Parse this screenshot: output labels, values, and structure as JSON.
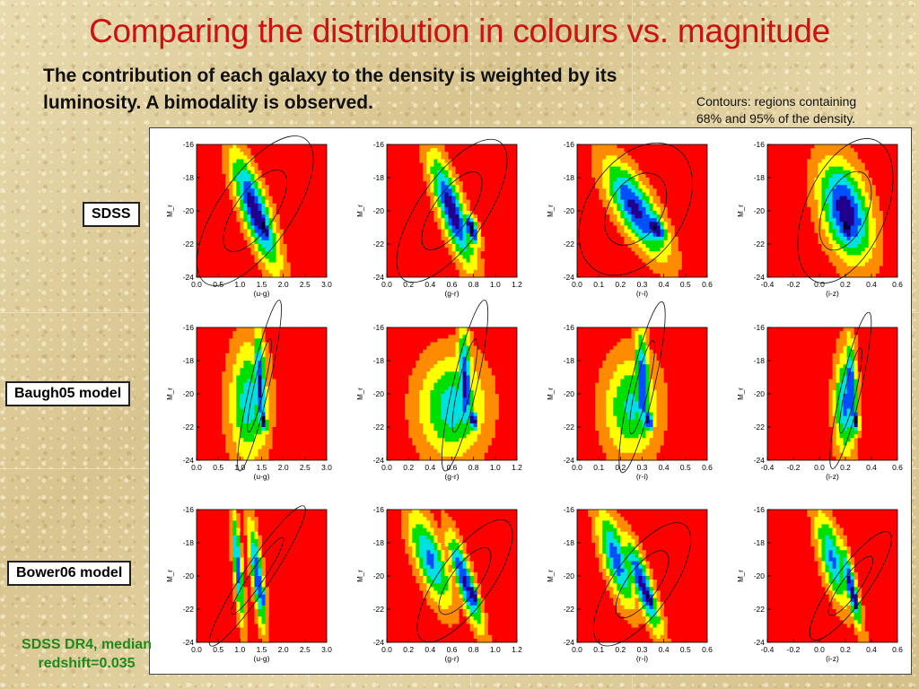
{
  "title": "Comparing the distribution in colours vs. magnitude",
  "subtitle_line1": "The contribution of each galaxy to the density is weighted by its",
  "subtitle_line2": "luminosity.  A bimodality is observed.",
  "contours_note_line1": "Contours: regions containing",
  "contours_note_line2": "68% and 95% of the density.",
  "row_labels": [
    "SDSS",
    "Baugh05 model",
    "Bower06 model"
  ],
  "footnote_line1": "SDSS DR4, median",
  "footnote_line2": "redshift=0.035",
  "colors": {
    "title": "#cc1111",
    "footnote": "#1e8a1e",
    "panel_background": "#ff0000",
    "colormap": [
      "#ff0000",
      "#ff8c00",
      "#ffff00",
      "#00e000",
      "#00e0e0",
      "#0050ff",
      "#20008c",
      "#000030"
    ]
  },
  "chart_data": {
    "type": "heatmap",
    "layout": "3 rows x 4 columns of density maps",
    "ylabel": "M_r",
    "ylim": [
      -24,
      -16
    ],
    "yticks": [
      "-16",
      "-18",
      "-20",
      "-22",
      "-24"
    ],
    "columns": [
      {
        "xlabel": "(u-g)",
        "xlim": [
          0.0,
          3.0
        ],
        "xticks": [
          "0.0",
          "0.5",
          "1.0",
          "1.5",
          "2.0",
          "2.5",
          "3.0"
        ]
      },
      {
        "xlabel": "(g-r)",
        "xlim": [
          0.0,
          1.2
        ],
        "xticks": [
          "0.0",
          "0.2",
          "0.4",
          "0.6",
          "0.8",
          "1.0",
          "1.2"
        ]
      },
      {
        "xlabel": "(r-i)",
        "xlim": [
          0.0,
          0.6
        ],
        "xticks": [
          "0.0",
          "0.1",
          "0.2",
          "0.3",
          "0.4",
          "0.5",
          "0.6"
        ]
      },
      {
        "xlabel": "(i-z)",
        "xlim": [
          -0.4,
          0.6
        ],
        "xticks": [
          "-0.4",
          "-0.2",
          "0.0",
          "0.2",
          "0.4",
          "0.6"
        ]
      }
    ],
    "rows": [
      {
        "name": "SDSS",
        "panels": [
          [
            {
              "x": 1.35,
              "y": -20.0,
              "sx": 0.38,
              "sy": 2.4,
              "rho": -0.8,
              "a": 0.9
            },
            {
              "x": 1.55,
              "y": -21.0,
              "sx": 0.14,
              "sy": 0.8,
              "rho": -0.6,
              "a": 1.0
            }
          ],
          [
            {
              "x": 0.6,
              "y": -20.0,
              "sx": 0.14,
              "sy": 2.3,
              "rho": -0.8,
              "a": 0.9
            },
            {
              "x": 0.78,
              "y": -21.1,
              "sx": 0.05,
              "sy": 0.7,
              "rho": -0.6,
              "a": 1.0
            }
          ],
          [
            {
              "x": 0.27,
              "y": -19.9,
              "sx": 0.1,
              "sy": 2.0,
              "rho": -0.75,
              "a": 0.85
            },
            {
              "x": 0.36,
              "y": -21.0,
              "sx": 0.04,
              "sy": 0.7,
              "rho": -0.5,
              "a": 1.0
            }
          ],
          [
            {
              "x": 0.2,
              "y": -20.0,
              "sx": 0.14,
              "sy": 2.1,
              "rho": -0.4,
              "a": 0.9
            },
            {
              "x": 0.21,
              "y": -21.0,
              "sx": 0.06,
              "sy": 0.8,
              "rho": -0.3,
              "a": 1.0
            }
          ]
        ]
      },
      {
        "name": "Baugh05 model",
        "panels": [
          [
            {
              "x": 1.2,
              "y": -20.5,
              "sx": 0.32,
              "sy": 2.6,
              "rho": 0.0,
              "a": 0.6
            },
            {
              "x": 1.45,
              "y": -19.5,
              "sx": 0.1,
              "sy": 2.4,
              "rho": -0.2,
              "a": 0.85
            },
            {
              "x": 1.55,
              "y": -21.6,
              "sx": 0.06,
              "sy": 0.55,
              "rho": -0.3,
              "a": 1.0
            }
          ],
          [
            {
              "x": 0.6,
              "y": -20.8,
              "sx": 0.22,
              "sy": 2.2,
              "rho": 0.0,
              "a": 0.6
            },
            {
              "x": 0.72,
              "y": -19.5,
              "sx": 0.05,
              "sy": 2.4,
              "rho": -0.2,
              "a": 0.85
            },
            {
              "x": 0.8,
              "y": -21.6,
              "sx": 0.03,
              "sy": 0.5,
              "rho": -0.3,
              "a": 1.0
            }
          ],
          [
            {
              "x": 0.25,
              "y": -20.8,
              "sx": 0.09,
              "sy": 2.2,
              "rho": 0.0,
              "a": 0.55
            },
            {
              "x": 0.3,
              "y": -19.6,
              "sx": 0.025,
              "sy": 2.4,
              "rho": -0.2,
              "a": 0.85
            },
            {
              "x": 0.33,
              "y": -21.6,
              "sx": 0.015,
              "sy": 0.5,
              "rho": -0.3,
              "a": 1.0
            }
          ],
          [
            {
              "x": 0.2,
              "y": -20.6,
              "sx": 0.06,
              "sy": 2.2,
              "rho": 0.0,
              "a": 0.7
            },
            {
              "x": 0.24,
              "y": -19.8,
              "sx": 0.035,
              "sy": 2.2,
              "rho": -0.2,
              "a": 0.85
            },
            {
              "x": 0.28,
              "y": -21.6,
              "sx": 0.02,
              "sy": 0.55,
              "rho": -0.3,
              "a": 1.0
            }
          ]
        ]
      },
      {
        "name": "Bower06 model",
        "panels": [
          [
            {
              "x": 0.95,
              "y": -19.5,
              "sx": 0.1,
              "sy": 2.4,
              "rho": -0.7,
              "a": 0.75
            },
            {
              "x": 1.4,
              "y": -20.0,
              "sx": 0.14,
              "sy": 2.3,
              "rho": -0.75,
              "a": 0.8
            },
            {
              "x": 1.5,
              "y": -21.2,
              "sx": 0.06,
              "sy": 0.6,
              "rho": -0.5,
              "a": 1.0
            }
          ],
          [
            {
              "x": 0.4,
              "y": -19.0,
              "sx": 0.14,
              "sy": 2.0,
              "rho": -0.7,
              "a": 0.7
            },
            {
              "x": 0.72,
              "y": -20.3,
              "sx": 0.11,
              "sy": 2.0,
              "rho": -0.85,
              "a": 0.85
            },
            {
              "x": 0.8,
              "y": -21.2,
              "sx": 0.04,
              "sy": 0.7,
              "rho": -0.6,
              "a": 1.0
            }
          ],
          [
            {
              "x": 0.18,
              "y": -19.0,
              "sx": 0.06,
              "sy": 2.0,
              "rho": -0.7,
              "a": 0.75
            },
            {
              "x": 0.3,
              "y": -20.5,
              "sx": 0.06,
              "sy": 2.0,
              "rho": -0.85,
              "a": 0.85
            },
            {
              "x": 0.33,
              "y": -21.3,
              "sx": 0.02,
              "sy": 0.7,
              "rho": -0.6,
              "a": 1.0
            }
          ],
          [
            {
              "x": 0.1,
              "y": -19.0,
              "sx": 0.09,
              "sy": 2.0,
              "rho": -0.7,
              "a": 0.7
            },
            {
              "x": 0.24,
              "y": -20.6,
              "sx": 0.06,
              "sy": 1.8,
              "rho": -0.85,
              "a": 0.85
            },
            {
              "x": 0.27,
              "y": -21.4,
              "sx": 0.03,
              "sy": 0.8,
              "rho": -0.6,
              "a": 1.0
            }
          ]
        ]
      }
    ],
    "contour_levels": [
      "68%",
      "95%"
    ]
  }
}
